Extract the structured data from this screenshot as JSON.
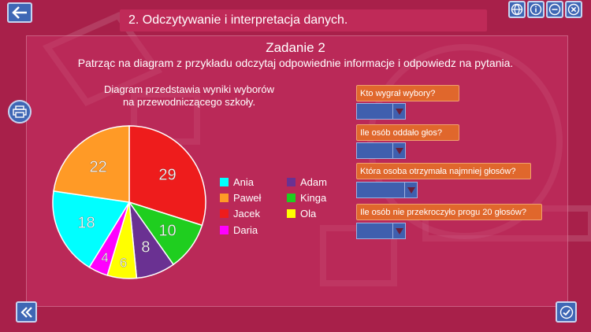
{
  "header": {
    "title": "2. Odczytywanie i interpretacja danych."
  },
  "task": {
    "title": "Zadanie 2",
    "instruction": "Patrząc na diagram z przykładu odczytaj odpowiednie informacje i odpowiedz na pytania.",
    "caption_line1": "Diagram przedstawia wyniki wyborów",
    "caption_line2": "na przewodniczącego szkoły."
  },
  "questions": [
    {
      "text": "Kto wygrał wybory?",
      "selected": ""
    },
    {
      "text": "Ile osób oddało głos?",
      "selected": ""
    },
    {
      "text": "Która osoba otrzymała najmniej głosów?",
      "selected": ""
    },
    {
      "text": "Ile osób nie przekroczyło progu 20 głosów?",
      "selected": ""
    }
  ],
  "icons": {
    "back": "back-arrow-icon",
    "globe": "globe-icon",
    "info": "info-icon",
    "minimize": "minimize-icon",
    "close": "close-icon",
    "print": "printer-icon",
    "prev": "double-chevron-left-icon",
    "check": "checkmark-icon"
  },
  "colors": {
    "background": "#a8204a",
    "button": "#3f67b5",
    "question": "#e0672c",
    "dropdown": "#3f5fae"
  },
  "chart_data": {
    "type": "pie",
    "title": "",
    "categories": [
      "Jacek",
      "Kinga",
      "Adam",
      "Ola",
      "Daria",
      "Ania",
      "Paweł"
    ],
    "values": [
      29,
      10,
      8,
      6,
      4,
      18,
      22
    ],
    "colors": [
      "#ee1c1c",
      "#1fce1f",
      "#6a3192",
      "#ffff00",
      "#ff00ff",
      "#00ffff",
      "#ff9a26"
    ],
    "legend": [
      "Ania",
      "Paweł",
      "Jacek",
      "Daria",
      "Adam",
      "Kinga",
      "Ola"
    ],
    "legend_placement": "right"
  }
}
